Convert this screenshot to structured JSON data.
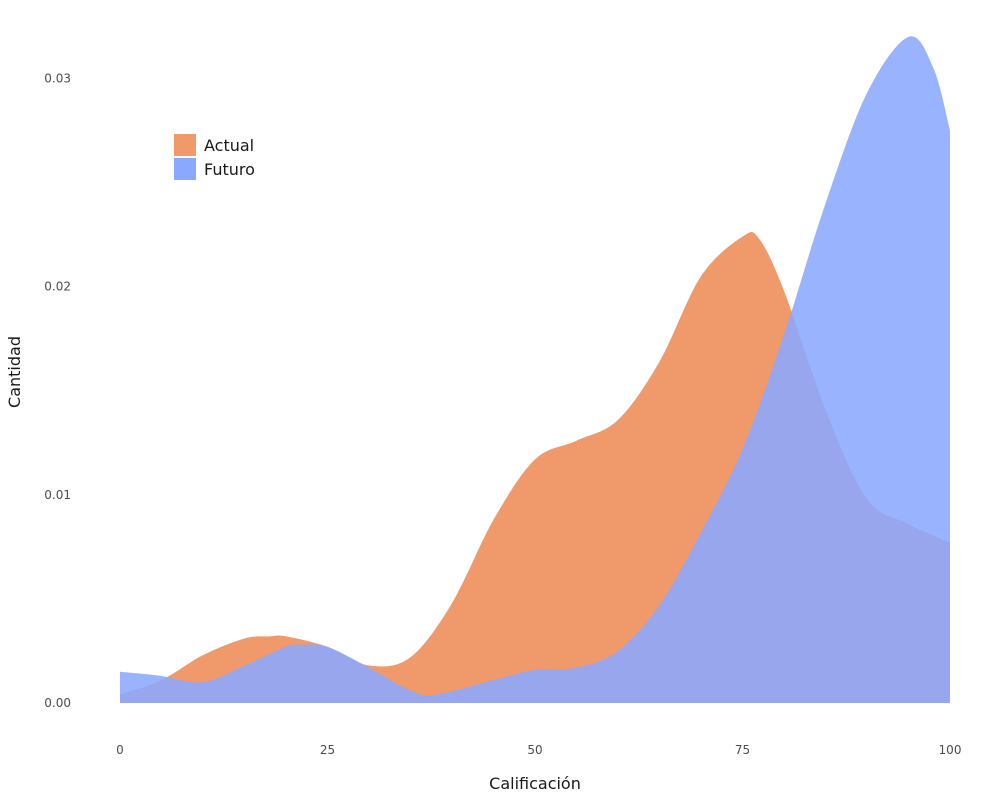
{
  "chart_data": {
    "type": "area",
    "subtype": "density",
    "xlabel": "Calificación",
    "ylabel": "Cantidad",
    "xlim": [
      0,
      100
    ],
    "ylim": [
      0,
      0.03
    ],
    "x_ticks": [
      0,
      25,
      50,
      75,
      100
    ],
    "x_tick_labels": [
      "0",
      "25",
      "50",
      "75",
      "100"
    ],
    "y_ticks": [
      0,
      0.01,
      0.02,
      0.03
    ],
    "y_tick_labels": [
      "0.00",
      "0.01",
      "0.02",
      "0.03"
    ],
    "grid": false,
    "legend_position": "top-left",
    "series": [
      {
        "name": "Actual",
        "color": "#f0996a",
        "x": [
          0,
          5,
          10,
          15,
          18,
          20,
          25,
          30,
          35,
          40,
          45,
          50,
          55,
          60,
          65,
          70,
          75,
          77,
          80,
          85,
          90,
          95,
          100
        ],
        "y": [
          0.0004,
          0.0011,
          0.0023,
          0.0031,
          0.0032,
          0.0032,
          0.0027,
          0.0018,
          0.0022,
          0.0048,
          0.0088,
          0.0117,
          0.0126,
          0.0136,
          0.0164,
          0.0205,
          0.0224,
          0.0223,
          0.0198,
          0.0141,
          0.0098,
          0.0086,
          0.0077
        ]
      },
      {
        "name": "Futuro",
        "color": "#8ba8ff",
        "x": [
          0,
          5,
          10,
          15,
          20,
          22,
          25,
          30,
          35,
          38,
          45,
          50,
          55,
          60,
          65,
          70,
          75,
          80,
          85,
          90,
          95,
          98,
          100
        ],
        "y": [
          0.0015,
          0.0013,
          0.001,
          0.0018,
          0.0027,
          0.0028,
          0.0027,
          0.0017,
          0.0006,
          0.0004,
          0.0011,
          0.0016,
          0.0017,
          0.0025,
          0.0047,
          0.0082,
          0.0122,
          0.0177,
          0.024,
          0.0293,
          0.032,
          0.0305,
          0.0275
        ]
      }
    ]
  }
}
